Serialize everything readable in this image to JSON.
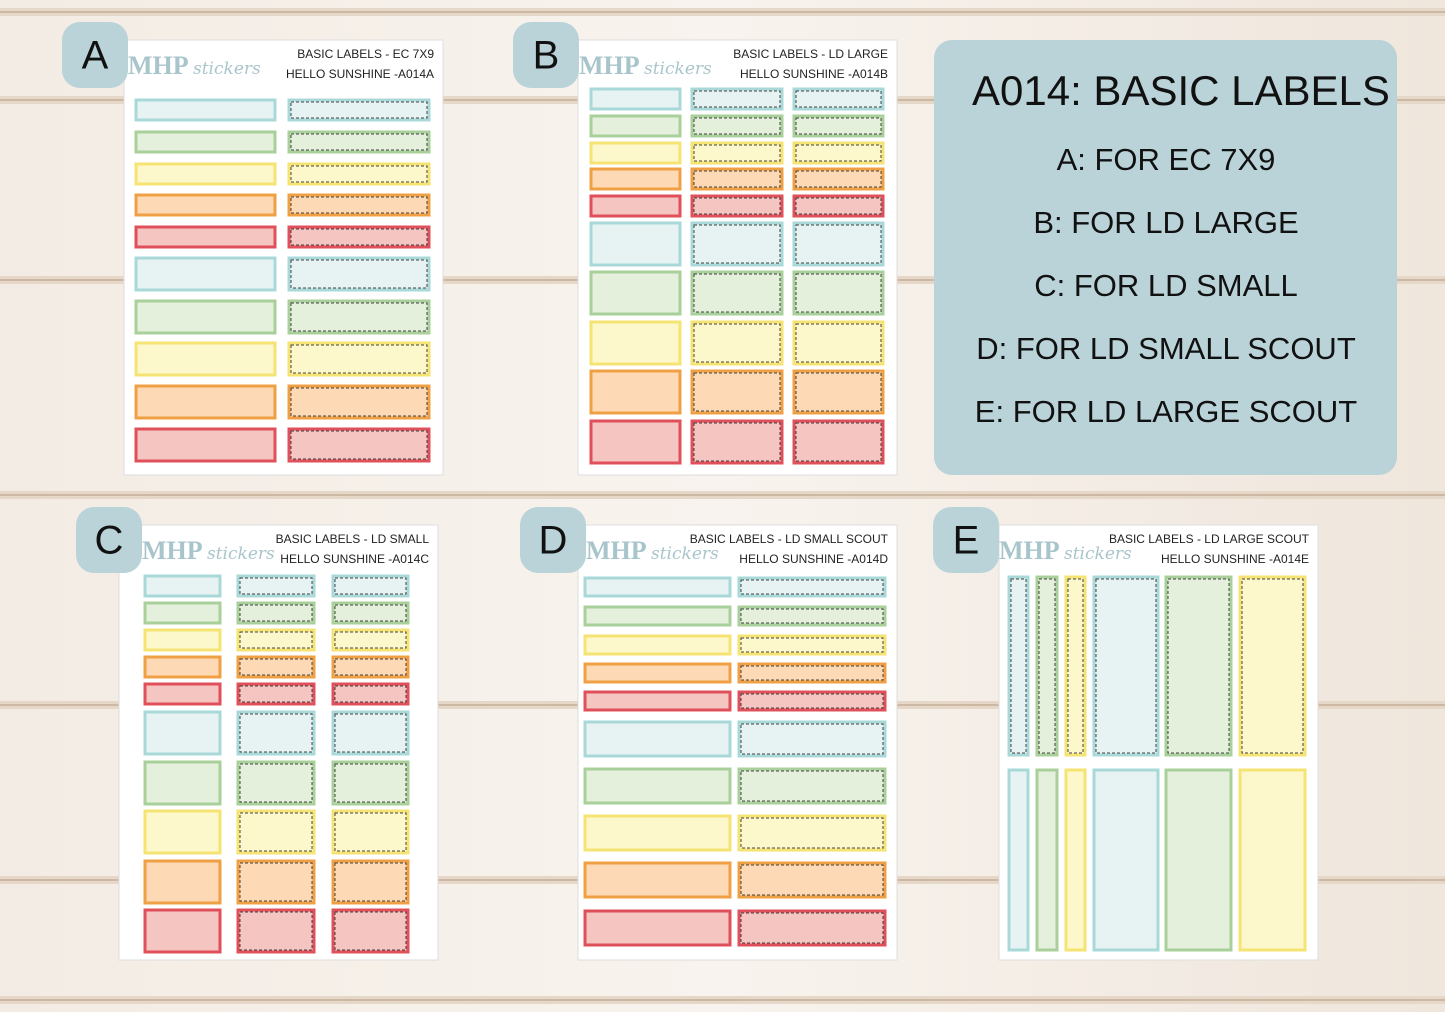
{
  "sheets": [
    {
      "badge": "A",
      "brand": "MHP",
      "brand_script": "stickers",
      "line1": "BASIC LABELS - EC 7X9",
      "line2": "HELLO SUNSHINE -A014A"
    },
    {
      "badge": "B",
      "brand": "MHP",
      "brand_script": "stickers",
      "line1": "BASIC LABELS - LD LARGE",
      "line2": "HELLO SUNSHINE -A014B"
    },
    {
      "badge": "C",
      "brand": "MHP",
      "brand_script": "stickers",
      "line1": "BASIC LABELS - LD SMALL",
      "line2": "HELLO SUNSHINE -A014C"
    },
    {
      "badge": "D",
      "brand": "MHP",
      "brand_script": "stickers",
      "line1": "BASIC LABELS - LD SMALL SCOUT",
      "line2": "HELLO SUNSHINE -A014D"
    },
    {
      "badge": "E",
      "brand": "MHP",
      "brand_script": "stickers",
      "line1": "BASIC LABELS - LD LARGE SCOUT",
      "line2": "HELLO SUNSHINE -A014E"
    }
  ],
  "panel": {
    "title": "A014: BASIC LABELS",
    "lines": [
      "A: FOR EC 7X9",
      "B: FOR LD LARGE",
      "C: FOR LD SMALL",
      "D: FOR LD SMALL SCOUT",
      "E: FOR LD LARGE SCOUT"
    ]
  }
}
